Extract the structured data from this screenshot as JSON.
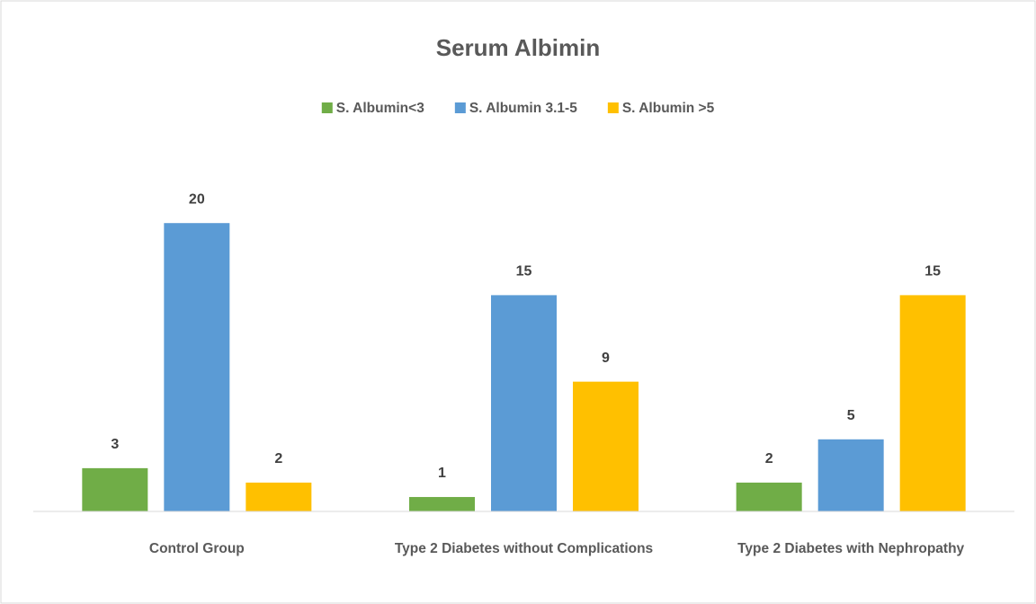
{
  "chart_data": {
    "type": "bar",
    "title": "Serum Albimin",
    "categories": [
      "Control Group",
      "Type 2 Diabetes without Complications",
      "Type 2 Diabetes with Nephropathy"
    ],
    "series": [
      {
        "name": "S. Albumin<3",
        "color": "#70ad47",
        "values": [
          3,
          1,
          2
        ]
      },
      {
        "name": "S. Albumin 3.1-5",
        "color": "#5b9bd5",
        "values": [
          20,
          15,
          5
        ]
      },
      {
        "name": "S. Albumin >5",
        "color": "#ffc000",
        "values": [
          2,
          9,
          15
        ]
      }
    ],
    "ylim": [
      0,
      25
    ],
    "legend": "top"
  }
}
